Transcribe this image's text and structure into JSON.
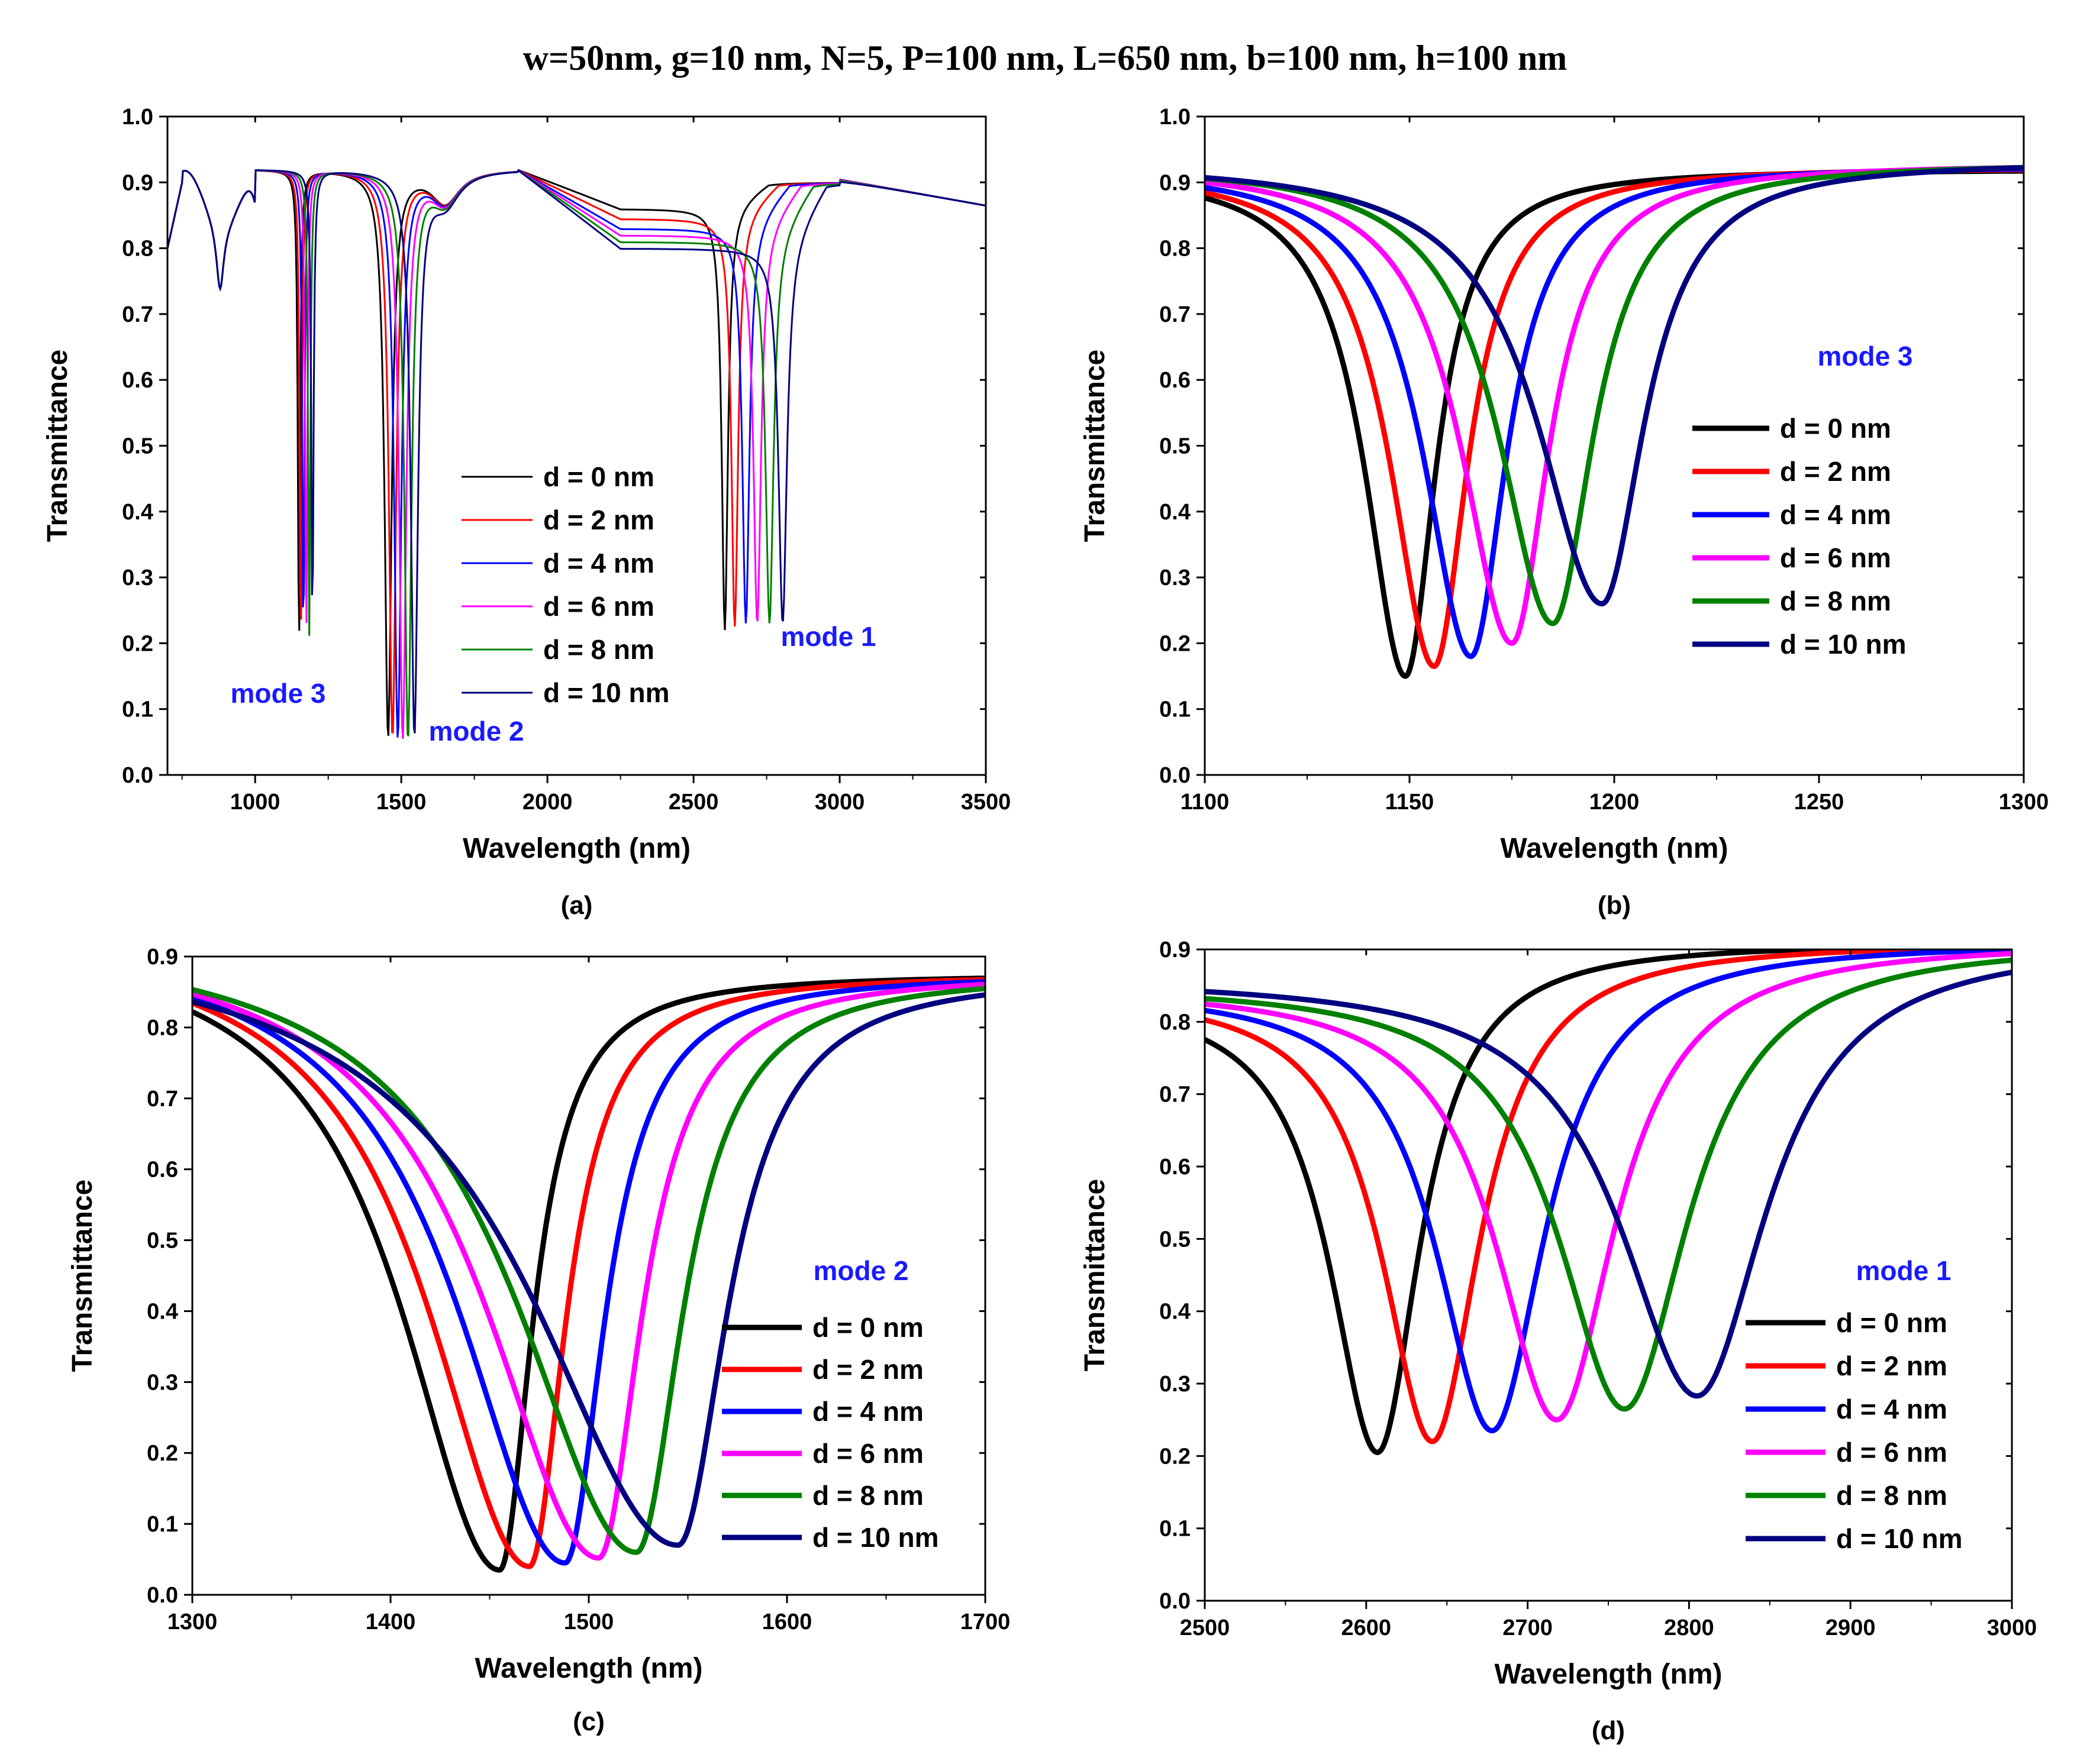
{
  "figure": {
    "title": "w=50nm, g=10 nm, N=5, P=100 nm, L=650 nm, b=100 nm, h=100 nm"
  },
  "series_colors": [
    "#000000",
    "#ff0000",
    "#0000ff",
    "#ff00ff",
    "#008000",
    "#000080"
  ],
  "chart_data": [
    {
      "id": "a",
      "type": "line",
      "caption": "(a)",
      "xlabel": "Wavelength (nm)",
      "ylabel": "Transmittance",
      "xlim": [
        700,
        3500
      ],
      "ylim": [
        0.0,
        1.0
      ],
      "xticks": [
        1000,
        1500,
        2000,
        2500,
        3000,
        3500
      ],
      "xtick_labels": [
        "1000",
        "1500",
        "2000",
        "2500",
        "3000",
        "3500"
      ],
      "yticks": [
        0.0,
        0.1,
        0.2,
        0.3,
        0.4,
        0.5,
        0.6,
        0.7,
        0.8,
        0.9,
        1.0
      ],
      "ytick_labels": [
        "0.0",
        "0.1",
        "0.2",
        "0.3",
        "0.4",
        "0.5",
        "0.6",
        "0.7",
        "0.8",
        "0.9",
        "1.0"
      ],
      "legend_position": "center-right",
      "annotations": [
        "mode 3",
        "mode 2",
        "mode 1"
      ],
      "series": [
        {
          "name": "d = 0 nm",
          "dips": [
            [
              1150,
              10,
              0.74
            ],
            [
              1455,
              32,
              0.86
            ],
            [
              2607,
              28,
              0.64
            ]
          ],
          "mid": 0.86
        },
        {
          "name": "d = 2 nm",
          "dips": [
            [
              1156,
              10,
              0.74
            ],
            [
              1470,
              32,
              0.86
            ],
            [
              2641,
              30,
              0.62
            ]
          ],
          "mid": 0.845
        },
        {
          "name": "d = 4 nm",
          "dips": [
            [
              1165,
              10,
              0.73
            ],
            [
              1488,
              32,
              0.86
            ],
            [
              2679,
              32,
              0.6
            ]
          ],
          "mid": 0.83
        },
        {
          "name": "d = 6 nm",
          "dips": [
            [
              1175,
              10,
              0.72
            ],
            [
              1505,
              32,
              0.86
            ],
            [
              2718,
              34,
              0.59
            ]
          ],
          "mid": 0.82
        },
        {
          "name": "d = 8 nm",
          "dips": [
            [
              1185,
              10,
              0.71
            ],
            [
              1523,
              32,
              0.86
            ],
            [
              2760,
              36,
              0.58
            ]
          ],
          "mid": 0.81
        },
        {
          "name": "d = 10 nm",
          "dips": [
            [
              1196,
              10,
              0.7
            ],
            [
              1545,
              32,
              0.85
            ],
            [
              2805,
              38,
              0.57
            ]
          ],
          "mid": 0.8
        }
      ]
    },
    {
      "id": "b",
      "type": "line",
      "caption": "(b)",
      "xlabel": "Wavelength (nm)",
      "ylabel": "Transmittance",
      "xlim": [
        1100,
        1300
      ],
      "ylim": [
        0.0,
        1.0
      ],
      "xticks": [
        1100,
        1150,
        1200,
        1250,
        1300
      ],
      "xtick_labels": [
        "1100",
        "1150",
        "1200",
        "1250",
        "1300"
      ],
      "yticks": [
        0.0,
        0.1,
        0.2,
        0.3,
        0.4,
        0.5,
        0.6,
        0.7,
        0.8,
        0.9,
        1.0
      ],
      "ytick_labels": [
        "0.0",
        "0.1",
        "0.2",
        "0.3",
        "0.4",
        "0.5",
        "0.6",
        "0.7",
        "0.8",
        "0.9",
        "1.0"
      ],
      "annotation": "mode 3",
      "legend_position": "right",
      "series": [
        {
          "name": "d = 0 nm",
          "center": 1149,
          "min": 0.15,
          "base": 0.92,
          "wl": 12,
          "wr": 9
        },
        {
          "name": "d = 2 nm",
          "center": 1156,
          "min": 0.165,
          "base": 0.923,
          "wl": 13,
          "wr": 10
        },
        {
          "name": "d = 4 nm",
          "center": 1165,
          "min": 0.18,
          "base": 0.925,
          "wl": 14,
          "wr": 10.5
        },
        {
          "name": "d = 6 nm",
          "center": 1175,
          "min": 0.2,
          "base": 0.928,
          "wl": 15,
          "wr": 11
        },
        {
          "name": "d = 8 nm",
          "center": 1185,
          "min": 0.23,
          "base": 0.93,
          "wl": 16,
          "wr": 12
        },
        {
          "name": "d = 10 nm",
          "center": 1197,
          "min": 0.26,
          "base": 0.932,
          "wl": 19,
          "wr": 12.5
        }
      ]
    },
    {
      "id": "c",
      "type": "line",
      "caption": "(c)",
      "xlabel": "Wavelength (nm)",
      "ylabel": "Transmittance",
      "xlim": [
        1300,
        1700
      ],
      "ylim": [
        0.0,
        0.9
      ],
      "xticks": [
        1300,
        1400,
        1500,
        1600,
        1700
      ],
      "xtick_labels": [
        "1300",
        "1400",
        "1500",
        "1600",
        "1700"
      ],
      "yticks": [
        0.0,
        0.1,
        0.2,
        0.3,
        0.4,
        0.5,
        0.6,
        0.7,
        0.8,
        0.9
      ],
      "ytick_labels": [
        "0.0",
        "0.1",
        "0.2",
        "0.3",
        "0.4",
        "0.5",
        "0.6",
        "0.7",
        "0.8",
        "0.9"
      ],
      "annotation": "mode 2",
      "legend_position": "lower-right",
      "series": [
        {
          "name": "d = 0 nm",
          "center": 1455,
          "min": 0.035,
          "baseL": 0.94,
          "baseR": 0.875,
          "wl": 60,
          "wr": 20
        },
        {
          "name": "d = 2 nm",
          "center": 1470,
          "min": 0.04,
          "baseL": 0.94,
          "baseR": 0.875,
          "wl": 62,
          "wr": 22
        },
        {
          "name": "d = 4 nm",
          "center": 1488,
          "min": 0.045,
          "baseL": 0.94,
          "baseR": 0.875,
          "wl": 66,
          "wr": 24
        },
        {
          "name": "d = 6 nm",
          "center": 1505,
          "min": 0.052,
          "baseL": 0.94,
          "baseR": 0.875,
          "wl": 70,
          "wr": 26
        },
        {
          "name": "d = 8 nm",
          "center": 1524,
          "min": 0.06,
          "baseL": 0.94,
          "baseR": 0.875,
          "wl": 74,
          "wr": 28
        },
        {
          "name": "d = 10 nm",
          "center": 1545,
          "min": 0.07,
          "baseL": 0.94,
          "baseR": 0.875,
          "wl": 90,
          "wr": 30
        }
      ]
    },
    {
      "id": "d",
      "type": "line",
      "caption": "(d)",
      "xlabel": "Wavelength (nm)",
      "ylabel": "Transmittance",
      "xlim": [
        2500,
        3000
      ],
      "ylim": [
        0.0,
        0.9
      ],
      "xticks": [
        2500,
        2600,
        2700,
        2800,
        2900,
        3000
      ],
      "xtick_labels": [
        "2500",
        "2600",
        "2700",
        "2800",
        "2900",
        "3000"
      ],
      "yticks": [
        0.0,
        0.1,
        0.2,
        0.3,
        0.4,
        0.5,
        0.6,
        0.7,
        0.8,
        0.9
      ],
      "ytick_labels": [
        "0.0",
        "0.1",
        "0.2",
        "0.3",
        "0.4",
        "0.5",
        "0.6",
        "0.7",
        "0.8",
        "0.9"
      ],
      "annotation": "mode 1",
      "legend_position": "lower-right",
      "series": [
        {
          "name": "d = 0 nm",
          "center": 2607,
          "min": 0.205,
          "baseL": 0.84,
          "baseR": 0.91,
          "wl": 36,
          "wr": 32
        },
        {
          "name": "d = 2 nm",
          "center": 2641,
          "min": 0.22,
          "baseL": 0.845,
          "baseR": 0.91,
          "wl": 38,
          "wr": 36
        },
        {
          "name": "d = 4 nm",
          "center": 2678,
          "min": 0.235,
          "baseL": 0.848,
          "baseR": 0.91,
          "wl": 42,
          "wr": 40
        },
        {
          "name": "d = 6 nm",
          "center": 2718,
          "min": 0.25,
          "baseL": 0.85,
          "baseR": 0.91,
          "wl": 46,
          "wr": 44
        },
        {
          "name": "d = 8 nm",
          "center": 2760,
          "min": 0.265,
          "baseL": 0.853,
          "baseR": 0.91,
          "wl": 50,
          "wr": 48
        },
        {
          "name": "d = 10 nm",
          "center": 2805,
          "min": 0.283,
          "baseL": 0.862,
          "baseR": 0.91,
          "wl": 58,
          "wr": 52
        }
      ]
    }
  ]
}
